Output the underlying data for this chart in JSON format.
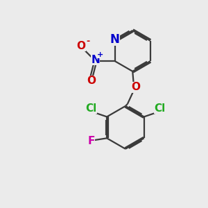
{
  "bg_color": "#ebebeb",
  "bond_color": "#3a3a3a",
  "bond_width": 1.6,
  "atom_colors": {
    "N_pyridine": "#0000cc",
    "N_nitro": "#0000cc",
    "O": "#cc0000",
    "Cl": "#22aa22",
    "F": "#cc00aa",
    "C": "#3a3a3a"
  },
  "font_size": 13
}
